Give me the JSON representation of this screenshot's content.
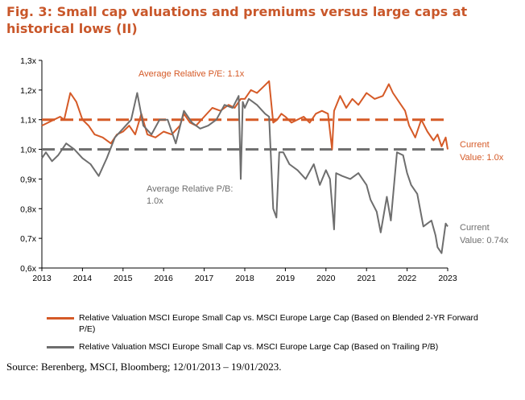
{
  "title": "Fig. 3: Small cap valuations and premiums versus large caps at historical lows (II)",
  "source": "Source: Berenberg, MSCI, Bloomberg; 12/01/2013 – 19/01/2023.",
  "colors": {
    "pe": "#d55a27",
    "pb": "#6e6e6e",
    "title": "#c9572a"
  },
  "chart_data": {
    "type": "line",
    "title": "Fig. 3: Small cap valuations and premiums versus large caps at historical lows (II)",
    "xlim": [
      2013,
      2023
    ],
    "ylim": [
      0.6,
      1.3
    ],
    "x_ticks": [
      "2013",
      "2014",
      "2015",
      "2016",
      "2017",
      "2018",
      "2019",
      "2020",
      "2021",
      "2022",
      "2023"
    ],
    "y_ticks": [
      "0,6x",
      "0,7x",
      "0,8x",
      "0,9x",
      "1,0x",
      "1,1x",
      "1,2x",
      "1,3x"
    ],
    "annotations": {
      "avg_pe": "Average Relative P/E: 1.1x",
      "avg_pb_1": "Average Relative P/B:",
      "avg_pb_2": "1.0x",
      "current_pe_1": "Current",
      "current_pe_2": "Value: 1.0x",
      "current_pb_1": "Current",
      "current_pb_2": "Value: 0.74x"
    },
    "reference_lines": [
      {
        "name": "Average Relative P/E",
        "value": 1.1
      },
      {
        "name": "Average Relative P/B",
        "value": 1.0
      }
    ],
    "series": [
      {
        "name": "Relative Valuation MSCI Europe Small Cap vs. MSCI Europe Large Cap (Based on Blended 2-YR Forward P/E)",
        "x": [
          2013.0,
          2013.15,
          2013.3,
          2013.45,
          2013.55,
          2013.7,
          2013.85,
          2014.0,
          2014.15,
          2014.3,
          2014.5,
          2014.7,
          2014.85,
          2015.0,
          2015.15,
          2015.3,
          2015.45,
          2015.6,
          2015.8,
          2016.0,
          2016.2,
          2016.4,
          2016.5,
          2016.65,
          2016.8,
          2017.0,
          2017.2,
          2017.4,
          2017.6,
          2017.75,
          2017.9,
          2018.0,
          2018.15,
          2018.3,
          2018.45,
          2018.6,
          2018.7,
          2018.8,
          2018.9,
          2019.0,
          2019.15,
          2019.3,
          2019.45,
          2019.6,
          2019.75,
          2019.9,
          2020.05,
          2020.15,
          2020.2,
          2020.35,
          2020.5,
          2020.65,
          2020.8,
          2021.0,
          2021.2,
          2021.4,
          2021.55,
          2021.65,
          2021.8,
          2021.95,
          2022.05,
          2022.2,
          2022.35,
          2022.5,
          2022.65,
          2022.75,
          2022.85,
          2022.95,
          2023.0
        ],
        "values": [
          1.08,
          1.09,
          1.1,
          1.11,
          1.1,
          1.19,
          1.16,
          1.1,
          1.08,
          1.05,
          1.04,
          1.02,
          1.05,
          1.06,
          1.08,
          1.05,
          1.12,
          1.05,
          1.04,
          1.06,
          1.05,
          1.08,
          1.12,
          1.09,
          1.08,
          1.11,
          1.14,
          1.13,
          1.15,
          1.14,
          1.17,
          1.17,
          1.2,
          1.19,
          1.21,
          1.23,
          1.09,
          1.1,
          1.12,
          1.11,
          1.09,
          1.1,
          1.11,
          1.09,
          1.12,
          1.13,
          1.12,
          1.0,
          1.13,
          1.18,
          1.14,
          1.17,
          1.15,
          1.19,
          1.17,
          1.18,
          1.22,
          1.19,
          1.16,
          1.13,
          1.08,
          1.04,
          1.1,
          1.06,
          1.03,
          1.05,
          1.01,
          1.04,
          1.0
        ]
      },
      {
        "name": "Relative Valuation MSCI Europe Small Cap vs. MSCI Europe Large Cap (Based on Trailing P/B)",
        "x": [
          2013.0,
          2013.1,
          2013.25,
          2013.4,
          2013.6,
          2013.8,
          2014.0,
          2014.2,
          2014.4,
          2014.6,
          2014.8,
          2015.0,
          2015.2,
          2015.35,
          2015.5,
          2015.7,
          2015.9,
          2016.1,
          2016.3,
          2016.5,
          2016.7,
          2016.9,
          2017.1,
          2017.3,
          2017.5,
          2017.7,
          2017.85,
          2017.9,
          2017.95,
          2018.0,
          2018.1,
          2018.3,
          2018.5,
          2018.6,
          2018.7,
          2018.78,
          2018.85,
          2018.95,
          2019.1,
          2019.3,
          2019.5,
          2019.7,
          2019.85,
          2020.0,
          2020.1,
          2020.2,
          2020.25,
          2020.4,
          2020.6,
          2020.8,
          2021.0,
          2021.1,
          2021.25,
          2021.35,
          2021.5,
          2021.6,
          2021.75,
          2021.9,
          2022.0,
          2022.1,
          2022.25,
          2022.4,
          2022.5,
          2022.6,
          2022.7,
          2022.75,
          2022.85,
          2022.95,
          2023.0
        ],
        "values": [
          0.97,
          0.99,
          0.96,
          0.98,
          1.02,
          1.0,
          0.97,
          0.95,
          0.91,
          0.97,
          1.04,
          1.07,
          1.1,
          1.19,
          1.08,
          1.05,
          1.1,
          1.1,
          1.02,
          1.13,
          1.09,
          1.07,
          1.08,
          1.1,
          1.15,
          1.14,
          1.18,
          0.9,
          1.16,
          1.14,
          1.17,
          1.15,
          1.12,
          1.11,
          0.8,
          0.77,
          0.99,
          0.99,
          0.95,
          0.93,
          0.9,
          0.95,
          0.88,
          0.93,
          0.9,
          0.73,
          0.92,
          0.91,
          0.9,
          0.92,
          0.88,
          0.83,
          0.79,
          0.72,
          0.84,
          0.76,
          0.99,
          0.98,
          0.92,
          0.88,
          0.85,
          0.74,
          0.75,
          0.76,
          0.71,
          0.67,
          0.65,
          0.75,
          0.74
        ]
      }
    ],
    "legend": [
      {
        "label": "Relative Valuation MSCI Europe Small Cap vs. MSCI Europe Large Cap (Based on Blended 2-YR Forward P/E)",
        "series": 0
      },
      {
        "label": "Relative Valuation MSCI Europe Small Cap vs. MSCI Europe Large Cap (Based on Trailing P/B)",
        "series": 1
      }
    ],
    "legend_position": "bottom",
    "grid": false
  }
}
